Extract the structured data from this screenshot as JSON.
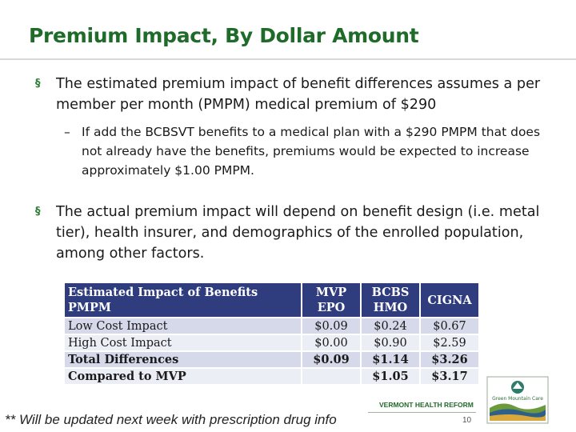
{
  "slide": {
    "title": "Premium Impact, By Dollar Amount",
    "bullets": [
      {
        "mark": "§",
        "text": "The estimated premium impact of benefit differences assumes a per member per month (PMPM) medical premium of $290",
        "sub": {
          "dash": "–",
          "text": "If add the BCBSVT benefits to a medical plan with a $290 PMPM that does not already have the benefits, premiums would be expected to increase approximately $1.00 PMPM."
        }
      },
      {
        "mark": "§",
        "text": "The actual premium impact will depend on benefit design (i.e. metal tier), health insurer, and demographics of the enrolled population, among other factors."
      }
    ]
  },
  "table": {
    "headers": {
      "label_line1": "Estimated Impact of Benefits",
      "label_line2": "PMPM",
      "mvp_line1": "MVP",
      "mvp_line2": "EPO",
      "bcbs_line1": "BCBS",
      "bcbs_line2": "HMO",
      "cigna": "CIGNA"
    },
    "rows": [
      {
        "label": "Low Cost Impact",
        "mvp": "$0.09",
        "bcbs": "$0.24",
        "cigna": "$0.67"
      },
      {
        "label": "High Cost Impact",
        "mvp": "$0.00",
        "bcbs": "$0.90",
        "cigna": "$2.59"
      },
      {
        "label": "Total Differences",
        "mvp": "$0.09",
        "bcbs": "$1.14",
        "cigna": "$3.26"
      },
      {
        "label": "Compared to MVP",
        "mvp": "",
        "bcbs": "$1.05",
        "cigna": "$3.17"
      }
    ]
  },
  "footer": {
    "note": "** Will be updated next week with prescription drug info",
    "org": "VERMONT HEALTH REFORM",
    "page": "10",
    "logo_text": "Green Mountain Care"
  },
  "colors": {
    "title": "#1f6b2a",
    "table_header": "#2f3d7f",
    "row_dark": "#d6d9ea",
    "row_light": "#eceef5"
  }
}
